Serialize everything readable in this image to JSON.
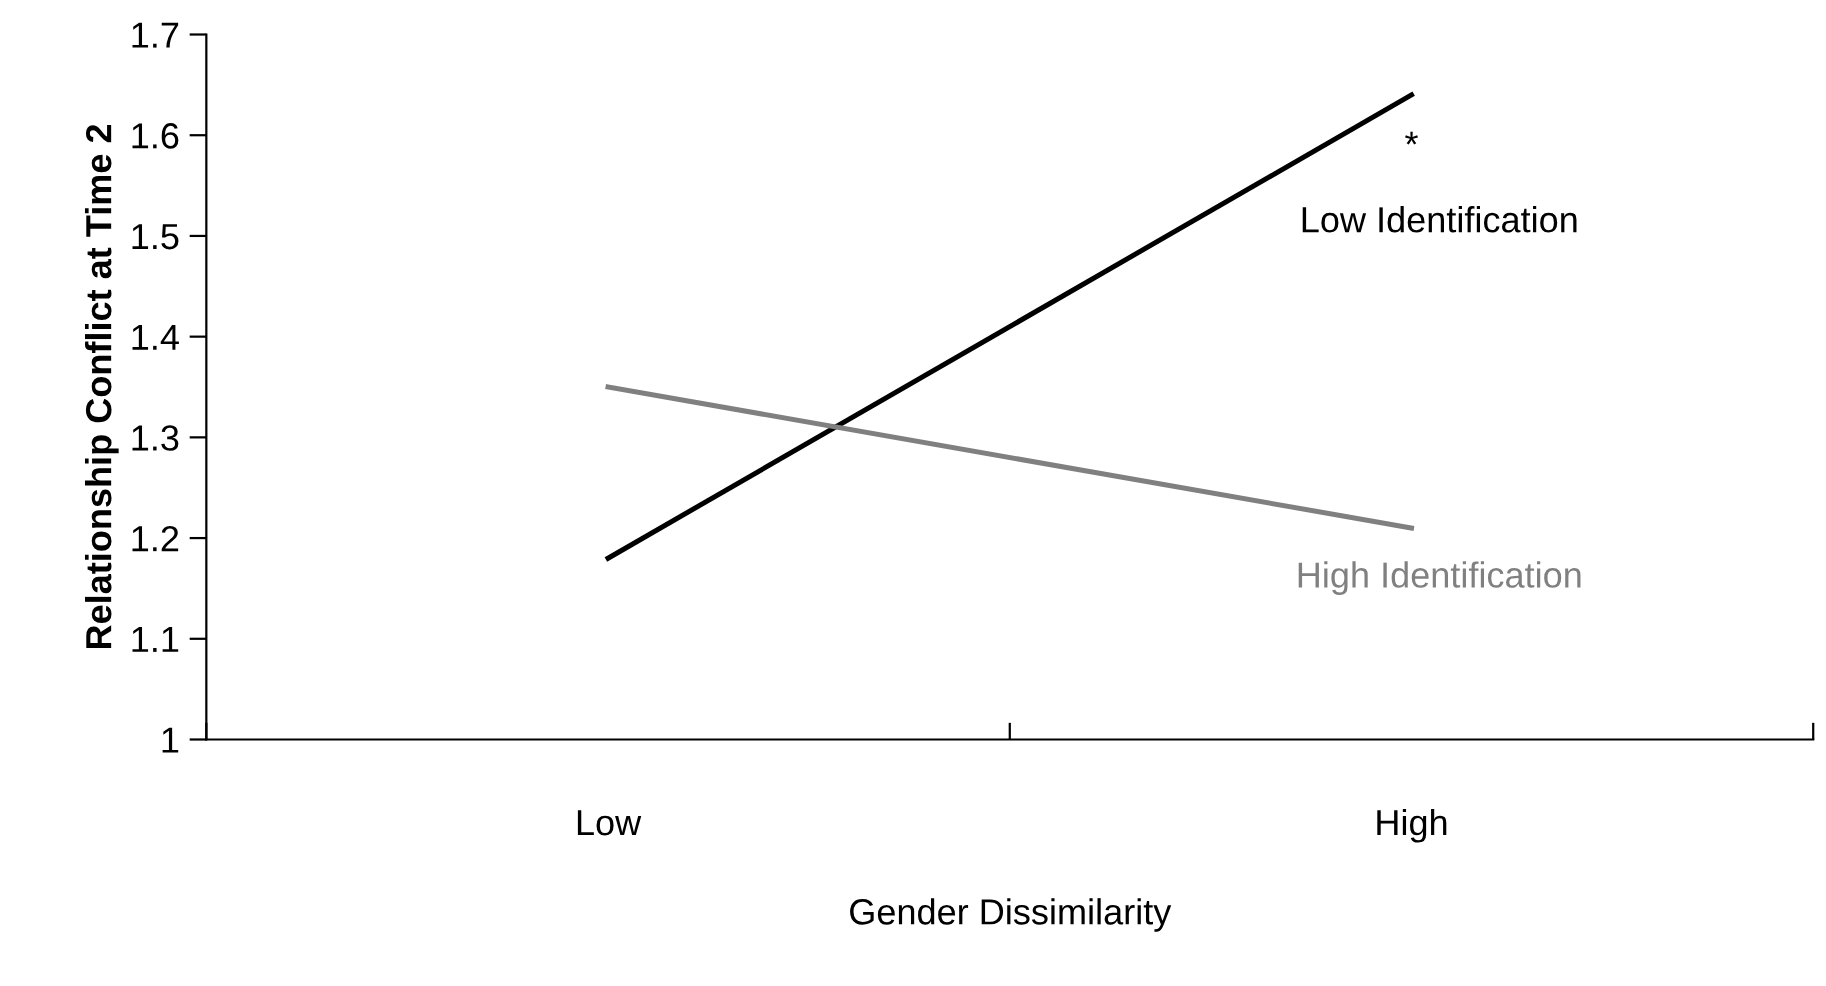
{
  "chart_data": {
    "type": "line",
    "xlabel": "Gender Dissimilarity",
    "ylabel": "Relationship Conflict at Time 2",
    "categories": [
      "Low",
      "High"
    ],
    "series": [
      {
        "name": "Low Identification",
        "color": "#000000",
        "values": [
          1.18,
          1.64
        ]
      },
      {
        "name": "High Identification",
        "color": "#808080",
        "values": [
          1.35,
          1.21
        ]
      }
    ],
    "ylim": [
      1,
      1.7
    ],
    "yticks": [
      1,
      1.1,
      1.2,
      1.3,
      1.4,
      1.5,
      1.6,
      1.7
    ],
    "annotations": [
      "*"
    ],
    "grid": false,
    "legend": false,
    "marker": "none",
    "line_style": "solid"
  }
}
